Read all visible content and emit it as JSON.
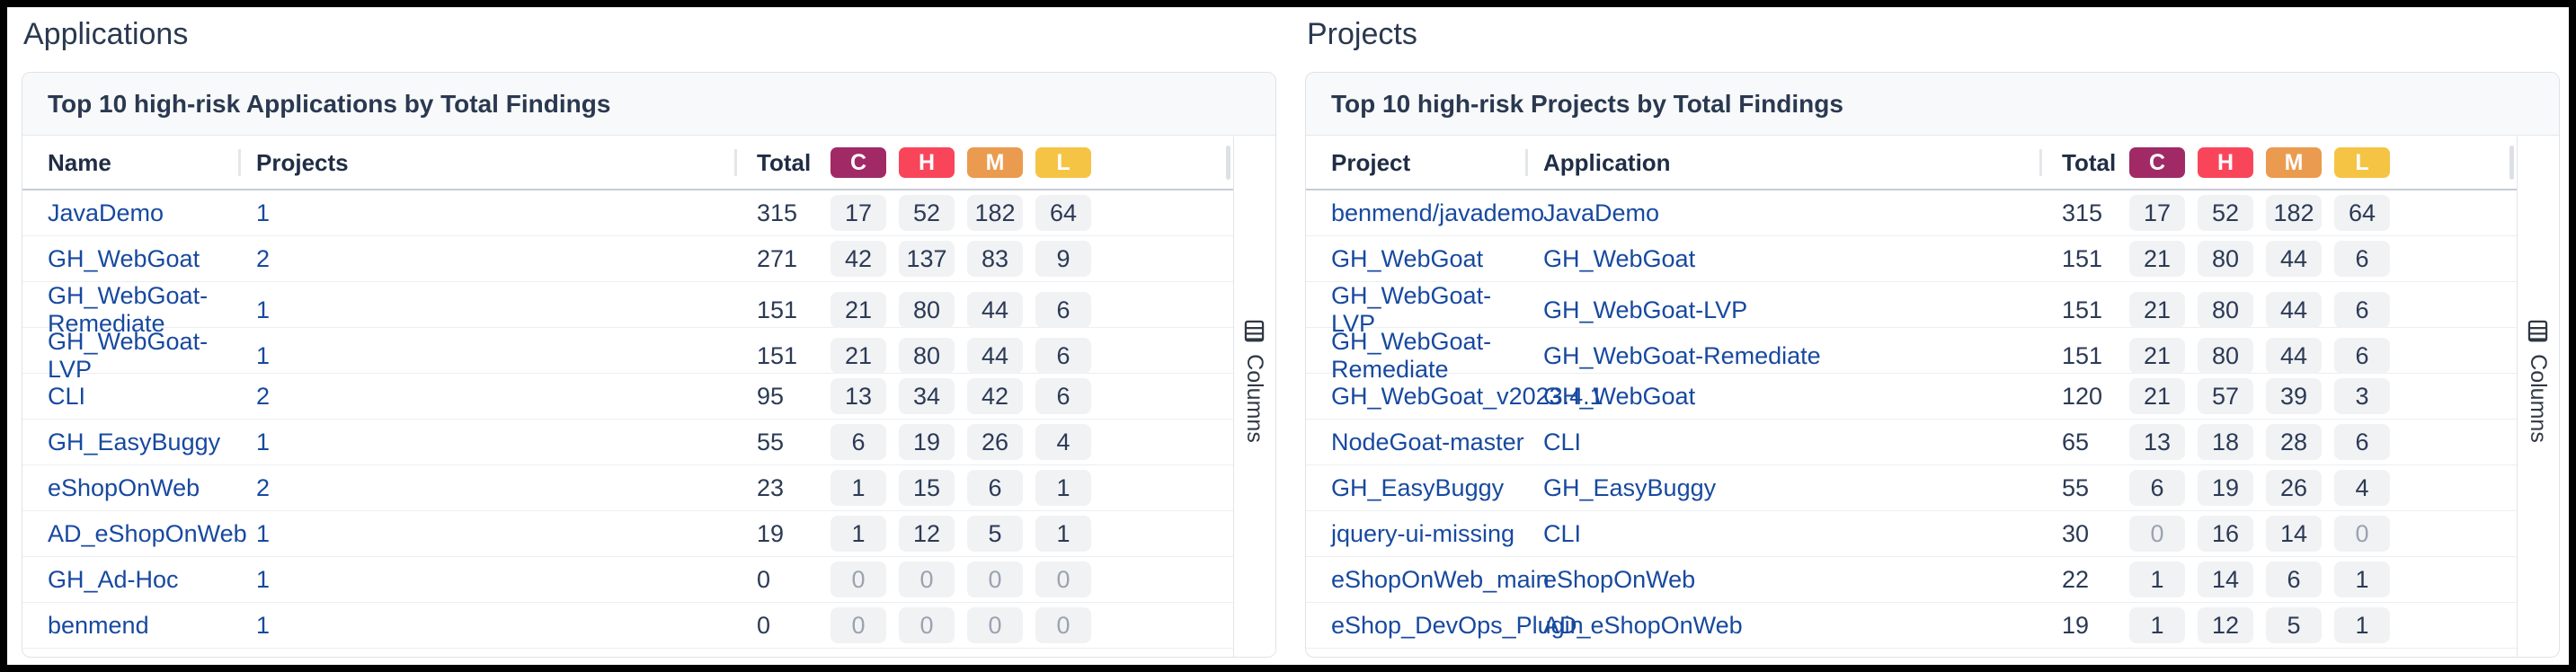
{
  "severity_colors": {
    "critical": "#a12a66",
    "high": "#f9455a",
    "medium": "#eb9b4f",
    "low": "#f6c445"
  },
  "pill_bg": "#f1f2f4",
  "link_color": "#17499f",
  "panels": [
    {
      "heading": "Applications",
      "card_title": "Top 10 high-risk Applications by Total Findings",
      "col1_header": "Name",
      "col2_header": "Projects",
      "total_header": "Total",
      "severity_headers": [
        "C",
        "H",
        "M",
        "L"
      ],
      "columns_button": "Columns",
      "rows": [
        {
          "col1": "JavaDemo",
          "col2": "1",
          "total": "315",
          "c": "17",
          "h": "52",
          "m": "182",
          "l": "64"
        },
        {
          "col1": "GH_WebGoat",
          "col2": "2",
          "total": "271",
          "c": "42",
          "h": "137",
          "m": "83",
          "l": "9"
        },
        {
          "col1": "GH_WebGoat-Remediate",
          "col2": "1",
          "total": "151",
          "c": "21",
          "h": "80",
          "m": "44",
          "l": "6"
        },
        {
          "col1": "GH_WebGoat-LVP",
          "col2": "1",
          "total": "151",
          "c": "21",
          "h": "80",
          "m": "44",
          "l": "6"
        },
        {
          "col1": "CLI",
          "col2": "2",
          "total": "95",
          "c": "13",
          "h": "34",
          "m": "42",
          "l": "6"
        },
        {
          "col1": "GH_EasyBuggy",
          "col2": "1",
          "total": "55",
          "c": "6",
          "h": "19",
          "m": "26",
          "l": "4"
        },
        {
          "col1": "eShopOnWeb",
          "col2": "2",
          "total": "23",
          "c": "1",
          "h": "15",
          "m": "6",
          "l": "1"
        },
        {
          "col1": "AD_eShopOnWeb",
          "col2": "1",
          "total": "19",
          "c": "1",
          "h": "12",
          "m": "5",
          "l": "1"
        },
        {
          "col1": "GH_Ad-Hoc",
          "col2": "1",
          "total": "0",
          "c": "0",
          "h": "0",
          "m": "0",
          "l": "0"
        },
        {
          "col1": "benmend",
          "col2": "1",
          "total": "0",
          "c": "0",
          "h": "0",
          "m": "0",
          "l": "0"
        }
      ]
    },
    {
      "heading": "Projects",
      "card_title": "Top 10 high-risk Projects by Total Findings",
      "col1_header": "Project",
      "col2_header": "Application",
      "total_header": "Total",
      "severity_headers": [
        "C",
        "H",
        "M",
        "L"
      ],
      "columns_button": "Columns",
      "rows": [
        {
          "col1": "benmend/javademo",
          "col2": "JavaDemo",
          "total": "315",
          "c": "17",
          "h": "52",
          "m": "182",
          "l": "64"
        },
        {
          "col1": "GH_WebGoat",
          "col2": "GH_WebGoat",
          "total": "151",
          "c": "21",
          "h": "80",
          "m": "44",
          "l": "6"
        },
        {
          "col1": "GH_WebGoat-LVP",
          "col2": "GH_WebGoat-LVP",
          "total": "151",
          "c": "21",
          "h": "80",
          "m": "44",
          "l": "6"
        },
        {
          "col1": "GH_WebGoat-Remediate",
          "col2": "GH_WebGoat-Remediate",
          "total": "151",
          "c": "21",
          "h": "80",
          "m": "44",
          "l": "6"
        },
        {
          "col1": "GH_WebGoat_v2023.4.1",
          "col2": "GH_WebGoat",
          "total": "120",
          "c": "21",
          "h": "57",
          "m": "39",
          "l": "3"
        },
        {
          "col1": "NodeGoat-master",
          "col2": "CLI",
          "total": "65",
          "c": "13",
          "h": "18",
          "m": "28",
          "l": "6"
        },
        {
          "col1": "GH_EasyBuggy",
          "col2": "GH_EasyBuggy",
          "total": "55",
          "c": "6",
          "h": "19",
          "m": "26",
          "l": "4"
        },
        {
          "col1": "jquery-ui-missing",
          "col2": "CLI",
          "total": "30",
          "c": "0",
          "h": "16",
          "m": "14",
          "l": "0"
        },
        {
          "col1": "eShopOnWeb_main",
          "col2": "eShopOnWeb",
          "total": "22",
          "c": "1",
          "h": "14",
          "m": "6",
          "l": "1"
        },
        {
          "col1": "eShop_DevOps_Plugin",
          "col2": "AD_eShopOnWeb",
          "total": "19",
          "c": "1",
          "h": "12",
          "m": "5",
          "l": "1"
        }
      ]
    }
  ]
}
